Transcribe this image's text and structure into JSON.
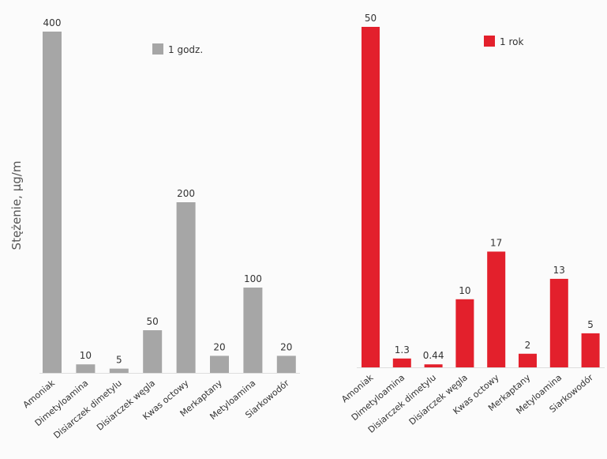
{
  "chart_data": [
    {
      "type": "bar",
      "ylabel": "Stężenie, μg/m",
      "legend": [
        {
          "name": "1 godz.",
          "color": "#a6a6a6"
        }
      ],
      "legend_position": "top-right",
      "color": "#a6a6a6",
      "categories": [
        "Amoniak",
        "Dimetyloamina",
        "Disiarczek dimetylu",
        "Disiarczek węgla",
        "Kwas octowy",
        "Merkaptany",
        "Metyloamina",
        "Siarkowodór"
      ],
      "values": [
        400,
        10,
        5,
        50,
        200,
        20,
        100,
        20
      ],
      "value_labels": [
        "400",
        "10",
        "5",
        "50",
        "200",
        "20",
        "100",
        "20"
      ]
    },
    {
      "type": "bar",
      "legend": [
        {
          "name": "1 rok",
          "color": "#e3202c"
        }
      ],
      "legend_position": "top-right",
      "color": "#e3202c",
      "categories": [
        "Amoniak",
        "Dimetyloamina",
        "Disiarczek dimetylu",
        "Disiarczek węgla",
        "Kwas octowy",
        "Merkaptany",
        "Metyloamina",
        "Siarkowodór"
      ],
      "values": [
        50,
        1.3,
        0.44,
        10,
        17,
        2,
        13,
        5
      ],
      "value_labels": [
        "50",
        "1.3",
        "0.44",
        "10",
        "17",
        "2",
        "13",
        "5"
      ]
    }
  ]
}
